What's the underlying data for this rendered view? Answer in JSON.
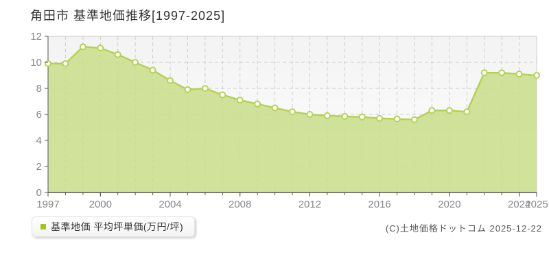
{
  "title": "角田市 基準地価推移[1997-2025]",
  "legend": {
    "label": "基準地価 平均坪単価(万円/坪)",
    "marker_color": "#a3c716"
  },
  "footer": {
    "copyright": "(C)土地価格ドットコム 2025-12-22"
  },
  "chart_data": {
    "type": "area",
    "title": "角田市 基準地価推移[1997-2025]",
    "series_name": "基準地価 平均坪単価(万円/坪)",
    "x": [
      1997,
      1998,
      1999,
      2000,
      2001,
      2002,
      2003,
      2004,
      2005,
      2006,
      2007,
      2008,
      2009,
      2010,
      2011,
      2012,
      2013,
      2014,
      2015,
      2016,
      2017,
      2018,
      2019,
      2020,
      2021,
      2022,
      2023,
      2024,
      2025
    ],
    "values": [
      9.9,
      9.9,
      11.2,
      11.1,
      10.6,
      10.0,
      9.4,
      8.6,
      7.9,
      8.0,
      7.5,
      7.1,
      6.8,
      6.5,
      6.2,
      6.0,
      5.9,
      5.85,
      5.8,
      5.7,
      5.65,
      5.6,
      6.3,
      6.3,
      6.2,
      9.2,
      9.2,
      9.1,
      9.0
    ],
    "xlabel": "",
    "ylabel": "",
    "ylim": [
      0,
      12
    ],
    "yticks": [
      0,
      2,
      4,
      6,
      8,
      10,
      12
    ],
    "xtick_labels": [
      "1997",
      "2000",
      "2004",
      "2008",
      "2012",
      "2016",
      "2020",
      "2024",
      "2025"
    ],
    "grid": true,
    "legend_position": "bottom-left",
    "colors": {
      "fill": "#c9de88",
      "line": "#b5d155",
      "marker_fill": "#ffffff",
      "marker_stroke": "#b5d155",
      "grid": "#cccccc",
      "axis_dark": "#555555",
      "axis_light": "#cccccc",
      "tick_label": "#878787",
      "plot_bg_top": "#f3f3f3",
      "plot_bg_bottom": "#fefefe"
    }
  }
}
